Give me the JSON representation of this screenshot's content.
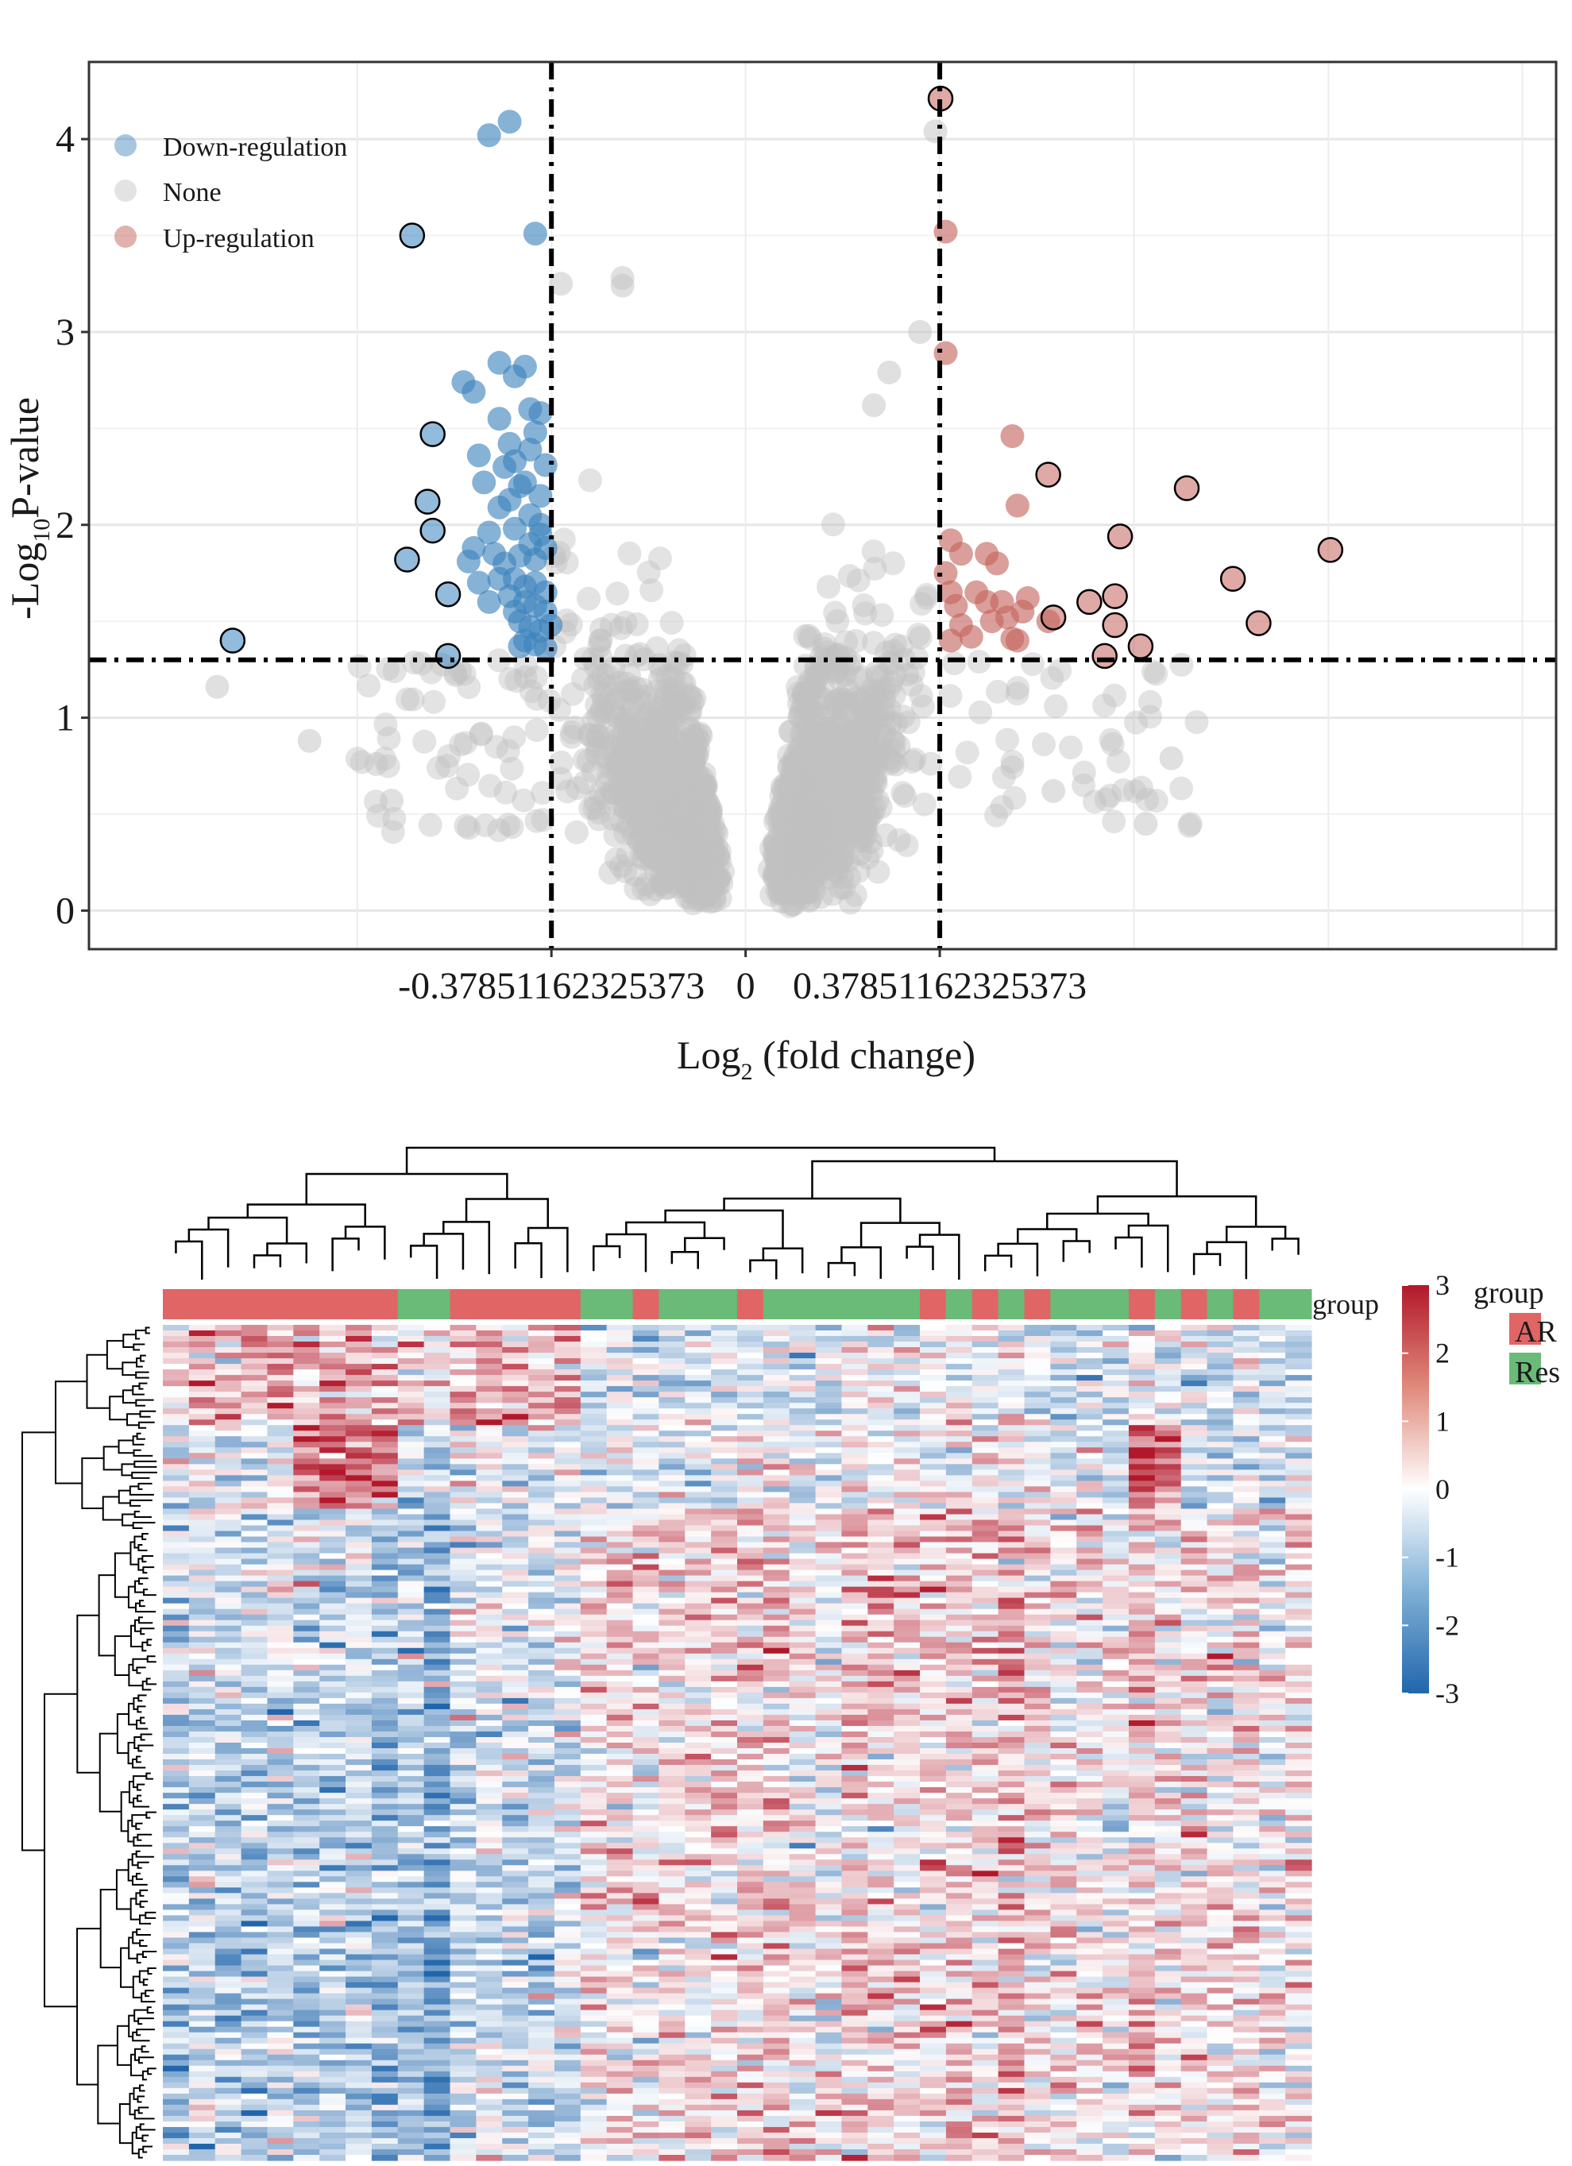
{
  "chart_data": [
    {
      "type": "scatter",
      "subtype": "volcano",
      "xlabel": "Log",
      "xlabel_sub": "2",
      "xlabel_rest": " (fold change)",
      "ylabel": "-Log",
      "ylabel_sub": "10",
      "ylabel_rest": "P-value",
      "xlim": [
        -1.28,
        1.58
      ],
      "ylim": [
        -0.2,
        4.4
      ],
      "x_ticks": [
        {
          "value": -0.37851162325373,
          "label": "-0.37851162325373"
        },
        {
          "value": 0,
          "label": "0"
        },
        {
          "value": 0.37851162325373,
          "label": "0.37851162325373"
        }
      ],
      "y_ticks": [
        {
          "value": 0,
          "label": "0"
        },
        {
          "value": 1,
          "label": "1"
        },
        {
          "value": 2,
          "label": "2"
        },
        {
          "value": 3,
          "label": "3"
        },
        {
          "value": 4,
          "label": "4"
        }
      ],
      "thresholds": {
        "fc": 0.37851162325373,
        "p": 1.3
      },
      "legend": [
        {
          "label": "Down-regulation",
          "color": "#3b83bd"
        },
        {
          "label": "None",
          "color": "#c8c8c8"
        },
        {
          "label": "Up-regulation",
          "color": "#c4645c"
        }
      ],
      "legend_position": "top-left",
      "colors": {
        "down": "#3b83bd",
        "none": "#c2c2c2",
        "up": "#c4645c",
        "grid": "#ebebeb",
        "outline": "#000000"
      },
      "series": [
        {
          "name": "Down-regulation",
          "points": [
            [
              -0.5,
              4.02
            ],
            [
              -0.46,
              4.09
            ],
            [
              -0.41,
              3.51
            ],
            [
              -0.55,
              2.74
            ],
            [
              -0.53,
              2.69
            ],
            [
              -0.48,
              2.84
            ],
            [
              -0.43,
              2.82
            ],
            [
              -0.45,
              2.77
            ],
            [
              -0.4,
              2.58
            ],
            [
              -0.41,
              2.48
            ],
            [
              -0.48,
              2.55
            ],
            [
              -0.52,
              2.36
            ],
            [
              -0.47,
              2.3
            ],
            [
              -0.45,
              2.33
            ],
            [
              -0.42,
              2.39
            ],
            [
              -0.43,
              2.22
            ],
            [
              -0.39,
              2.31
            ],
            [
              -0.51,
              2.22
            ],
            [
              -0.48,
              2.09
            ],
            [
              -0.46,
              2.13
            ],
            [
              -0.44,
              2.2
            ],
            [
              -0.42,
              2.05
            ],
            [
              -0.4,
              2.15
            ],
            [
              -0.5,
              1.96
            ],
            [
              -0.45,
              1.98
            ],
            [
              -0.42,
              1.9
            ],
            [
              -0.4,
              1.95
            ],
            [
              -0.47,
              1.8
            ],
            [
              -0.44,
              1.84
            ],
            [
              -0.41,
              1.82
            ],
            [
              -0.39,
              1.88
            ],
            [
              -0.52,
              1.7
            ],
            [
              -0.48,
              1.72
            ],
            [
              -0.45,
              1.72
            ],
            [
              -0.43,
              1.68
            ],
            [
              -0.41,
              1.7
            ],
            [
              -0.39,
              1.65
            ],
            [
              -0.54,
              1.81
            ],
            [
              -0.5,
              1.6
            ],
            [
              -0.46,
              1.63
            ],
            [
              -0.43,
              1.6
            ],
            [
              -0.41,
              1.58
            ],
            [
              -0.39,
              1.55
            ],
            [
              -0.44,
              1.5
            ],
            [
              -0.42,
              1.47
            ],
            [
              -0.4,
              1.45
            ],
            [
              -0.38,
              1.48
            ],
            [
              -0.43,
              1.4
            ],
            [
              -0.41,
              1.38
            ],
            [
              -0.39,
              1.36
            ],
            [
              -0.45,
              1.55
            ],
            [
              -0.49,
              1.85
            ],
            [
              -0.53,
              1.88
            ],
            [
              -0.46,
              2.42
            ],
            [
              -0.42,
              2.6
            ],
            [
              -0.4,
              2.0
            ],
            [
              -0.44,
              1.37
            ]
          ]
        },
        {
          "name": "Down-regulation outlined",
          "points": [
            [
              -0.65,
              3.5
            ],
            [
              -0.61,
              2.47
            ],
            [
              -0.62,
              2.12
            ],
            [
              -0.61,
              1.97
            ],
            [
              -0.66,
              1.82
            ],
            [
              -0.58,
              1.64
            ],
            [
              -0.58,
              1.32
            ],
            [
              -1.0,
              1.4
            ]
          ]
        },
        {
          "name": "Up-regulation",
          "points": [
            [
              0.39,
              3.52
            ],
            [
              0.39,
              2.89
            ],
            [
              0.52,
              2.46
            ],
            [
              0.53,
              2.1
            ],
            [
              0.4,
              1.92
            ],
            [
              0.42,
              1.85
            ],
            [
              0.47,
              1.85
            ],
            [
              0.49,
              1.8
            ],
            [
              0.39,
              1.75
            ],
            [
              0.4,
              1.65
            ],
            [
              0.45,
              1.65
            ],
            [
              0.5,
              1.6
            ],
            [
              0.54,
              1.55
            ],
            [
              0.51,
              1.52
            ],
            [
              0.48,
              1.5
            ],
            [
              0.42,
              1.48
            ],
            [
              0.44,
              1.42
            ],
            [
              0.52,
              1.41
            ],
            [
              0.4,
              1.4
            ],
            [
              0.59,
              1.5
            ],
            [
              0.53,
              1.4
            ],
            [
              0.41,
              1.58
            ],
            [
              0.47,
              1.6
            ],
            [
              0.55,
              1.62
            ]
          ]
        },
        {
          "name": "Up-regulation outlined",
          "points": [
            [
              0.38,
              4.21
            ],
            [
              0.59,
              2.26
            ],
            [
              0.86,
              2.19
            ],
            [
              0.73,
              1.94
            ],
            [
              1.14,
              1.87
            ],
            [
              0.95,
              1.72
            ],
            [
              0.72,
              1.63
            ],
            [
              0.67,
              1.6
            ],
            [
              0.6,
              1.52
            ],
            [
              0.72,
              1.48
            ],
            [
              1.0,
              1.49
            ],
            [
              0.77,
              1.37
            ],
            [
              0.7,
              1.32
            ]
          ]
        }
      ]
    },
    {
      "type": "heatmap",
      "annotation_label": "group",
      "legend_title": "group",
      "groups": [
        {
          "label": "AR",
          "color": "#e06666"
        },
        {
          "label": "Res",
          "color": "#6aba78"
        }
      ],
      "column_groups": [
        "AR",
        "AR",
        "AR",
        "AR",
        "AR",
        "AR",
        "AR",
        "AR",
        "AR",
        "Res",
        "Res",
        "AR",
        "AR",
        "AR",
        "AR",
        "AR",
        "Res",
        "Res",
        "AR",
        "Res",
        "Res",
        "Res",
        "AR",
        "Res",
        "Res",
        "Res",
        "Res",
        "Res",
        "Res",
        "AR",
        "Res",
        "AR",
        "Res",
        "AR",
        "Res",
        "Res",
        "Res",
        "AR",
        "Res",
        "AR",
        "Res",
        "AR",
        "Res",
        "Res"
      ],
      "color_scale": {
        "min": -3,
        "max": 3,
        "ticks": [
          "3",
          "2",
          "1",
          "0",
          "-1",
          "-2",
          "-3"
        ],
        "low": "#2166ac",
        "mid": "#ffffff",
        "high": "#b2182b"
      },
      "n_rows": 150,
      "n_cols": 44
    }
  ]
}
